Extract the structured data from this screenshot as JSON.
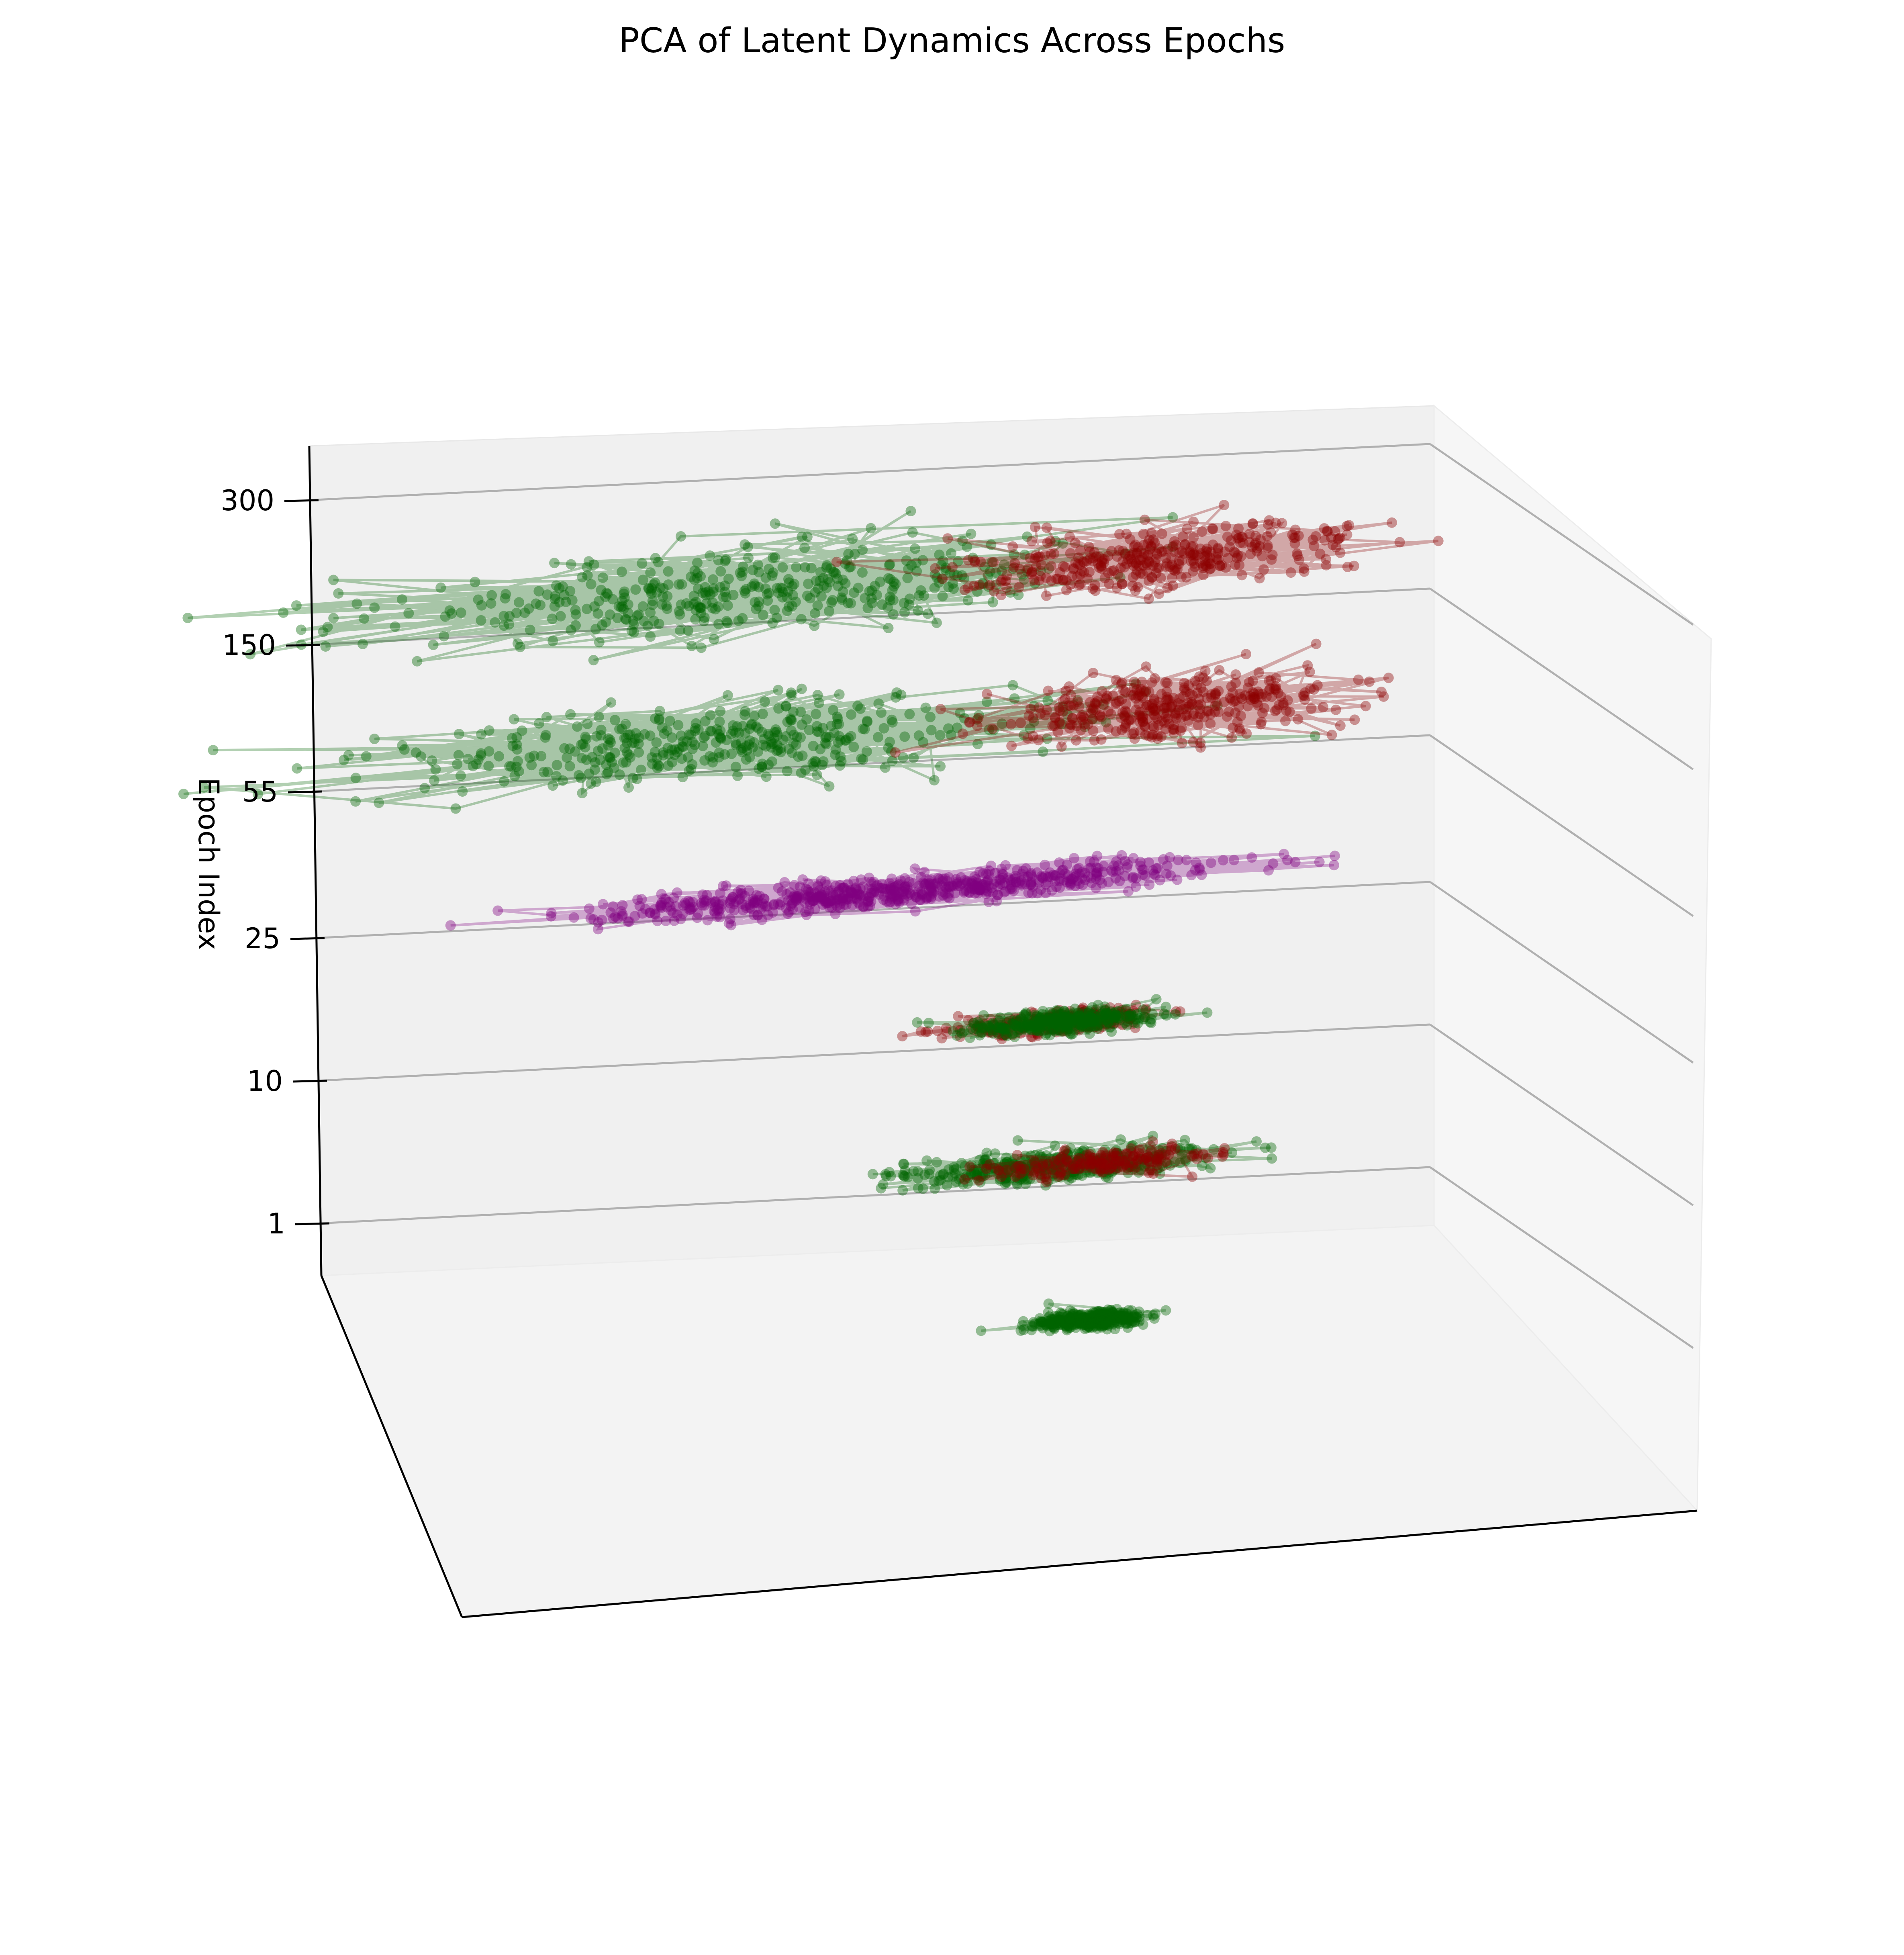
{
  "chart_data": {
    "type": "scatter",
    "title": "PCA of Latent Dynamics Across Epochs",
    "zlabel": "Epoch Index",
    "zticks": [
      "1",
      "10",
      "25",
      "55",
      "150",
      "300"
    ],
    "xlabel": "",
    "ylabel": "",
    "colors": {
      "green": "#006400",
      "red": "#8b0000",
      "purple": "#800080"
    },
    "layers": [
      {
        "epoch": "0",
        "series": [
          {
            "name": "green",
            "color": "green",
            "count": 350,
            "spread_x": 0.9,
            "spread_y": 0.22,
            "center_x": 0.0
          }
        ]
      },
      {
        "epoch": "1",
        "series": [
          {
            "name": "green",
            "color": "green",
            "count": 420,
            "spread_x": 2.4,
            "spread_y": 0.35,
            "center_x": -0.6
          },
          {
            "name": "red",
            "color": "red",
            "count": 160,
            "spread_x": 1.8,
            "spread_y": 0.3,
            "center_x": 0.2
          }
        ]
      },
      {
        "epoch": "10",
        "series": [
          {
            "name": "red",
            "color": "red",
            "count": 260,
            "spread_x": 1.7,
            "spread_y": 0.28,
            "center_x": -0.3
          },
          {
            "name": "green",
            "color": "green",
            "count": 320,
            "spread_x": 1.5,
            "spread_y": 0.25,
            "center_x": -0.3
          }
        ]
      },
      {
        "epoch": "25",
        "series": [
          {
            "name": "purple",
            "color": "purple",
            "count": 700,
            "spread_x": 5.0,
            "spread_y": 0.35,
            "center_x": -1.5
          }
        ]
      },
      {
        "epoch": "55",
        "series": [
          {
            "name": "green",
            "color": "green",
            "count": 420,
            "spread_x": 5.5,
            "spread_y": 0.9,
            "center_x": -4.0
          },
          {
            "name": "red",
            "color": "red",
            "count": 360,
            "spread_x": 3.0,
            "spread_y": 0.7,
            "center_x": 3.5
          }
        ]
      },
      {
        "epoch": "150",
        "series": [
          {
            "name": "green",
            "color": "green",
            "count": 420,
            "spread_x": 5.5,
            "spread_y": 0.9,
            "center_x": -3.5
          },
          {
            "name": "red",
            "color": "red",
            "count": 360,
            "spread_x": 3.0,
            "spread_y": 0.7,
            "center_x": 3.5
          }
        ]
      }
    ],
    "grid": true,
    "view": "3d"
  }
}
